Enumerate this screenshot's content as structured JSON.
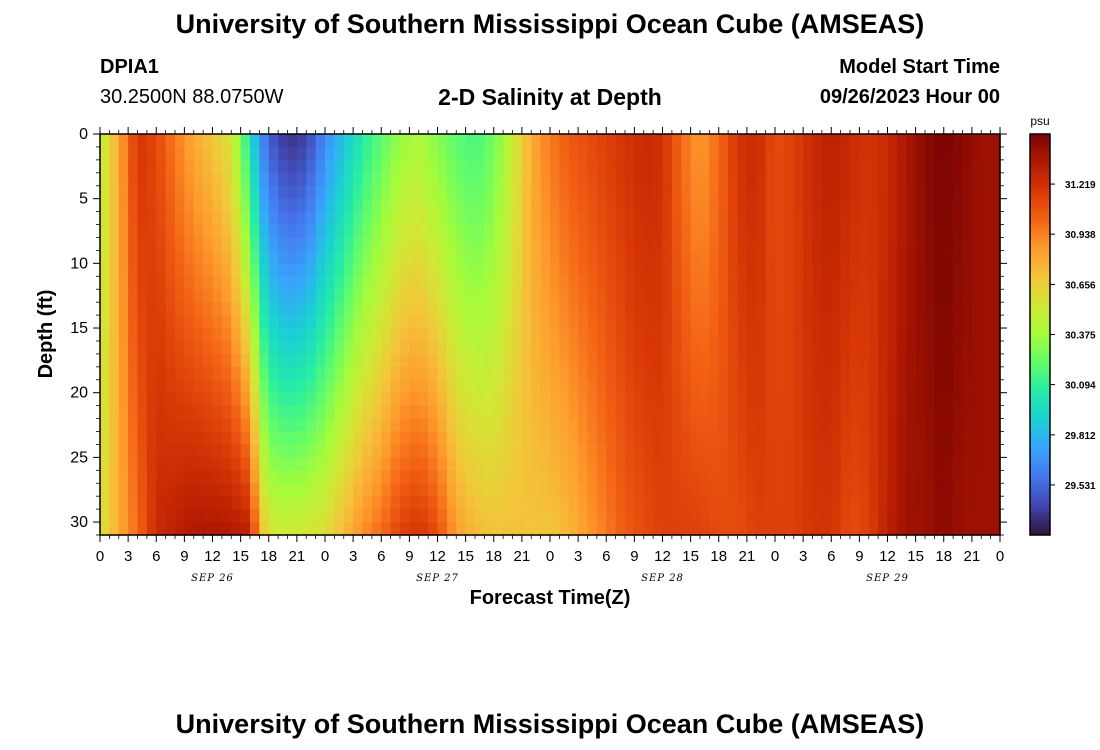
{
  "header": {
    "title": "University of Southern Mississippi Ocean Cube (AMSEAS)",
    "station_id": "DPIA1",
    "coords": "30.2500N  88.0750W",
    "model_start_label": "Model Start Time",
    "model_start_value": "09/26/2023 Hour 00"
  },
  "footer": {
    "title": "University of Southern Mississippi Ocean Cube (AMSEAS)"
  },
  "chart_data": {
    "type": "heatmap",
    "title": "2-D Salinity at Depth",
    "xlabel": "Forecast Time(Z)",
    "ylabel": "Depth (ft)",
    "x_range_hours": [
      0,
      96
    ],
    "ylim": [
      0,
      31
    ],
    "x_tick_labels": [
      "0",
      "3",
      "6",
      "9",
      "12",
      "15",
      "18",
      "21",
      "0",
      "3",
      "6",
      "9",
      "12",
      "15",
      "18",
      "21",
      "0",
      "3",
      "6",
      "9",
      "12",
      "15",
      "18",
      "21",
      "0",
      "3",
      "6",
      "9",
      "12",
      "15",
      "18",
      "21",
      "0"
    ],
    "date_labels": [
      {
        "hour": 12,
        "text": "SEP 26"
      },
      {
        "hour": 36,
        "text": "SEP 27"
      },
      {
        "hour": 60,
        "text": "SEP 28"
      },
      {
        "hour": 84,
        "text": "SEP 29"
      }
    ],
    "y_ticks": [
      0,
      5,
      10,
      15,
      20,
      25,
      30
    ],
    "colorbar": {
      "unit": "psu",
      "min": 29.25,
      "max": 31.5,
      "tick_values": [
        31.219,
        30.938,
        30.656,
        30.375,
        30.094,
        29.812,
        29.531
      ],
      "tick_labels": [
        "31.219",
        "30.938",
        "30.656",
        "30.375",
        "30.094",
        "29.812",
        "29.531"
      ]
    },
    "salinity_profiles": [
      {
        "hour": 0,
        "surface": 30.45,
        "bottom": 30.55
      },
      {
        "hour": 2,
        "surface": 30.8,
        "bottom": 30.8
      },
      {
        "hour": 4,
        "surface": 31.2,
        "bottom": 31.0
      },
      {
        "hour": 6,
        "surface": 31.12,
        "bottom": 31.25
      },
      {
        "hour": 8,
        "surface": 30.95,
        "bottom": 31.3
      },
      {
        "hour": 10,
        "surface": 30.8,
        "bottom": 31.35
      },
      {
        "hour": 12,
        "surface": 30.7,
        "bottom": 31.35
      },
      {
        "hour": 14,
        "surface": 30.55,
        "bottom": 31.35
      },
      {
        "hour": 16,
        "surface": 30.0,
        "bottom": 31.3
      },
      {
        "hour": 17,
        "surface": 29.7,
        "bottom": 30.8
      },
      {
        "hour": 18,
        "surface": 29.5,
        "bottom": 30.55
      },
      {
        "hour": 20,
        "surface": 29.35,
        "bottom": 30.52
      },
      {
        "hour": 22,
        "surface": 29.4,
        "bottom": 30.55
      },
      {
        "hour": 24,
        "surface": 29.65,
        "bottom": 30.6
      },
      {
        "hour": 26,
        "surface": 29.85,
        "bottom": 30.75
      },
      {
        "hour": 28,
        "surface": 30.05,
        "bottom": 30.9
      },
      {
        "hour": 30,
        "surface": 30.2,
        "bottom": 31.0
      },
      {
        "hour": 32,
        "surface": 30.35,
        "bottom": 31.15
      },
      {
        "hour": 34,
        "surface": 30.4,
        "bottom": 31.2
      },
      {
        "hour": 36,
        "surface": 30.3,
        "bottom": 31.1
      },
      {
        "hour": 38,
        "surface": 30.2,
        "bottom": 30.85
      },
      {
        "hour": 40,
        "surface": 30.15,
        "bottom": 30.75
      },
      {
        "hour": 42,
        "surface": 30.25,
        "bottom": 30.7
      },
      {
        "hour": 44,
        "surface": 30.5,
        "bottom": 30.72
      },
      {
        "hour": 46,
        "surface": 30.8,
        "bottom": 30.7
      },
      {
        "hour": 48,
        "surface": 30.95,
        "bottom": 30.7
      },
      {
        "hour": 50,
        "surface": 31.05,
        "bottom": 30.75
      },
      {
        "hour": 52,
        "surface": 31.1,
        "bottom": 30.85
      },
      {
        "hour": 54,
        "surface": 31.15,
        "bottom": 30.95
      },
      {
        "hour": 56,
        "surface": 31.2,
        "bottom": 31.05
      },
      {
        "hour": 58,
        "surface": 31.25,
        "bottom": 31.1
      },
      {
        "hour": 60,
        "surface": 31.22,
        "bottom": 31.15
      },
      {
        "hour": 62,
        "surface": 31.0,
        "bottom": 31.15
      },
      {
        "hour": 64,
        "surface": 30.85,
        "bottom": 31.15
      },
      {
        "hour": 66,
        "surface": 31.0,
        "bottom": 31.1
      },
      {
        "hour": 68,
        "surface": 31.2,
        "bottom": 31.1
      },
      {
        "hour": 70,
        "surface": 31.25,
        "bottom": 31.15
      },
      {
        "hour": 72,
        "surface": 31.1,
        "bottom": 31.15
      },
      {
        "hour": 74,
        "surface": 31.15,
        "bottom": 31.15
      },
      {
        "hour": 76,
        "surface": 31.25,
        "bottom": 31.2
      },
      {
        "hour": 78,
        "surface": 31.3,
        "bottom": 31.2
      },
      {
        "hour": 80,
        "surface": 31.25,
        "bottom": 31.1
      },
      {
        "hour": 82,
        "surface": 31.2,
        "bottom": 31.15
      },
      {
        "hour": 84,
        "surface": 31.25,
        "bottom": 31.3
      },
      {
        "hour": 86,
        "surface": 31.35,
        "bottom": 31.4
      },
      {
        "hour": 88,
        "surface": 31.45,
        "bottom": 31.4
      },
      {
        "hour": 90,
        "surface": 31.5,
        "bottom": 31.45
      },
      {
        "hour": 92,
        "surface": 31.45,
        "bottom": 31.4
      },
      {
        "hour": 94,
        "surface": 31.4,
        "bottom": 31.4
      },
      {
        "hour": 96,
        "surface": 31.4,
        "bottom": 31.4
      }
    ]
  },
  "colors": {
    "colormap": [
      "#30123b",
      "#4145ab",
      "#4675ed",
      "#39a2fc",
      "#1bcfd4",
      "#24eca6",
      "#61fc6c",
      "#a4fc3b",
      "#d1e834",
      "#f3c63a",
      "#fe9b2d",
      "#f36315",
      "#d93806",
      "#b11901",
      "#7a0402"
    ],
    "axis": "#000000"
  }
}
